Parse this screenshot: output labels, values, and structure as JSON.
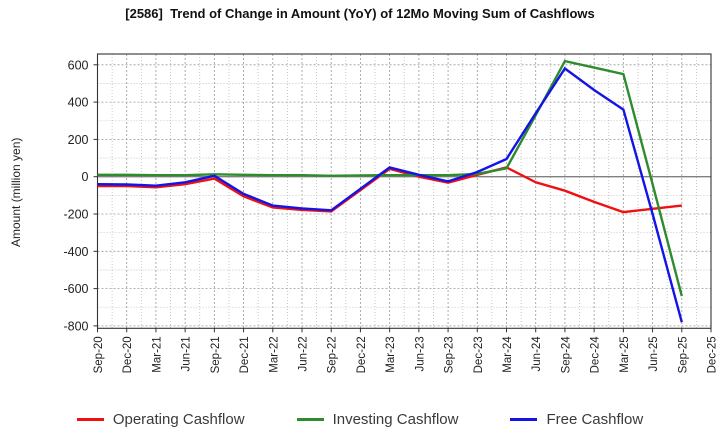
{
  "title": "[2586]  Trend of Change in Amount (YoY) of 12Mo Moving Sum of Cashflows",
  "y_axis_label": "Amount (million yen)",
  "chart_data": {
    "type": "line",
    "title": "[2586]  Trend of Change in Amount (YoY) of 12Mo Moving Sum of Cashflows",
    "xlabel": "",
    "ylabel": "Amount (million yen)",
    "ylim": [
      -810,
      658
    ],
    "yticks": [
      600,
      400,
      200,
      0,
      -200,
      -400,
      -600,
      -800
    ],
    "grid": true,
    "legend_position": "bottom",
    "categories": [
      "Sep-20",
      "Dec-20",
      "Mar-21",
      "Jun-21",
      "Sep-21",
      "Dec-21",
      "Mar-22",
      "Jun-22",
      "Sep-22",
      "Dec-22",
      "Mar-23",
      "Jun-23",
      "Sep-23",
      "Dec-23",
      "Mar-24",
      "Jun-24",
      "Sep-24",
      "Dec-24",
      "Mar-25",
      "Jun-25",
      "Sep-25",
      "Dec-25"
    ],
    "series": [
      {
        "name": "Operating Cashflow",
        "color": "#ee1111",
        "values": [
          -50,
          -50,
          -57,
          -40,
          -10,
          -105,
          -165,
          -178,
          -186,
          -72,
          42,
          0,
          -32,
          10,
          50,
          -30,
          -75,
          -135,
          -190,
          -172,
          -155,
          null
        ]
      },
      {
        "name": "Investing Cashflow",
        "color": "#2e8b2e",
        "values": [
          10,
          10,
          8,
          8,
          13,
          10,
          8,
          8,
          5,
          7,
          8,
          8,
          8,
          15,
          45,
          330,
          620,
          585,
          550,
          -40,
          -640,
          null
        ]
      },
      {
        "name": "Free Cashflow",
        "color": "#1414e6",
        "values": [
          -40,
          -42,
          -48,
          -30,
          5,
          -92,
          -155,
          -170,
          -180,
          -65,
          50,
          10,
          -25,
          25,
          95,
          340,
          580,
          465,
          360,
          -200,
          -780,
          null
        ]
      }
    ]
  },
  "colors": {
    "border": "#333333",
    "zero_line": "#808080",
    "major_grid": "#999999",
    "minor_grid": "#bbbbbb",
    "tick_label": "#222222"
  }
}
